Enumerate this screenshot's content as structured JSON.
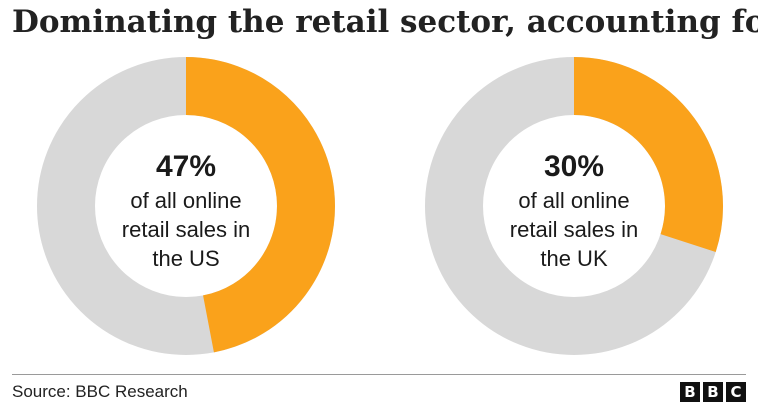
{
  "title": "Dominating the retail sector, accounting for",
  "chart_data": [
    {
      "type": "pie",
      "style": "donut",
      "categories": [
        "online retail sales in the US"
      ],
      "values": [
        47
      ],
      "remainder": 53,
      "center_value": "47%",
      "center_text": [
        "of all online",
        "retail sales in",
        "the US"
      ],
      "colors": {
        "share": "#FAA21B",
        "rest": "#D8D8D8"
      }
    },
    {
      "type": "pie",
      "style": "donut",
      "categories": [
        "online retail sales in the UK"
      ],
      "values": [
        30
      ],
      "remainder": 70,
      "center_value": "30%",
      "center_text": [
        "of all online",
        "retail sales in",
        "the UK"
      ],
      "colors": {
        "share": "#FAA21B",
        "rest": "#D8D8D8"
      }
    }
  ],
  "footer": {
    "source": "Source: BBC Research",
    "logo_letters": [
      "B",
      "B",
      "C"
    ]
  }
}
